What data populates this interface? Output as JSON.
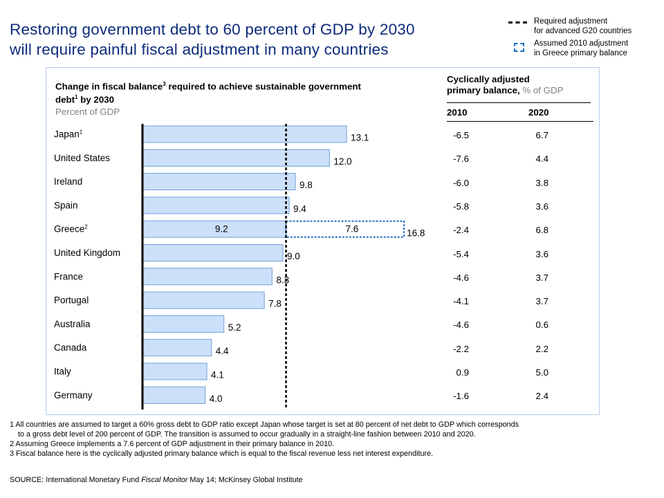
{
  "title": {
    "line1": "Restoring government debt to 60 percent of GDP by 2030",
    "line2": "will require painful fiscal adjustment in many countries"
  },
  "legend": {
    "dashed_line_l1": "Required adjustment",
    "dashed_line_l2": "for advanced G20 countries",
    "dashed_box_l1": "Assumed 2010 adjustment",
    "dashed_box_l2": "in Greece primary balance"
  },
  "chart_header": {
    "line1_a": "Change in fiscal balance",
    "line1_sup": "3",
    "line1_b": " required to achieve sustainable government",
    "line2_a": "debt",
    "line2_sup": "1",
    "line2_b": " by 2030",
    "unit": "Percent of GDP"
  },
  "table_header": {
    "line1": "Cyclically adjusted",
    "line2_bold": "primary balance,",
    "line2_unit": " % of GDP",
    "col_2010": "2010",
    "col_2020": "2020"
  },
  "chart_data": {
    "type": "bar",
    "orientation": "horizontal",
    "categories": [
      "Japan",
      "United States",
      "Ireland",
      "Spain",
      "Greece",
      "United Kingdom",
      "France",
      "Portugal",
      "Australia",
      "Canada",
      "Italy",
      "Germany"
    ],
    "category_superscripts": [
      "1",
      "",
      "",
      "",
      "2",
      "",
      "",
      "",
      "",
      "",
      "",
      ""
    ],
    "values": [
      13.1,
      12.0,
      9.8,
      9.4,
      9.2,
      9.0,
      8.3,
      7.8,
      5.2,
      4.4,
      4.1,
      4.0
    ],
    "value_labels": [
      "13.1",
      "12.0",
      "9.8",
      "9.4",
      "9.2",
      "9.0",
      "8.3",
      "7.8",
      "5.2",
      "4.4",
      "4.1",
      "4.0"
    ],
    "greece_extra": {
      "value": 7.6,
      "label": "7.6",
      "total": 16.8,
      "total_label": "16.8"
    },
    "required_adjustment_line": 9.2,
    "xlim": [
      0,
      17.5
    ],
    "bar_color": "#cce0fa",
    "bar_border": "#6fa0d8",
    "extra_border": "#1f6fc4"
  },
  "table": {
    "rows": [
      {
        "y2010": "-6.5",
        "y2020": "6.7"
      },
      {
        "y2010": "-7.6",
        "y2020": "4.4"
      },
      {
        "y2010": "-6.0",
        "y2020": "3.8"
      },
      {
        "y2010": "-5.8",
        "y2020": "3.6"
      },
      {
        "y2010": "-2.4",
        "y2020": "6.8"
      },
      {
        "y2010": "-5.4",
        "y2020": "3.6"
      },
      {
        "y2010": "-4.6",
        "y2020": "3.7"
      },
      {
        "y2010": "-4.1",
        "y2020": "3.7"
      },
      {
        "y2010": "-4.6",
        "y2020": "0.6"
      },
      {
        "y2010": "-2.2",
        "y2020": "2.2"
      },
      {
        "y2010": "0.9",
        "y2020": "5.0"
      },
      {
        "y2010": "-1.6",
        "y2020": "2.4"
      }
    ]
  },
  "footnotes": {
    "n1a": "1 All countries are assumed to target a 60% gross debt to GDP ratio except Japan whose target is set at 80 percent of net debt to GDP which corresponds",
    "n1b": "to a gross debt level of 200 percent of GDP. The transition is assumed to occur gradually in a straight-line fashion between 2010 and 2020.",
    "n2": "2 Assuming Greece implements a 7.6 percent of GDP adjustment in their primary balance in 2010.",
    "n3": "3 Fiscal balance here is the cyclically adjusted primary balance which is equal to the fiscal revenue less net interest expenditure."
  },
  "source": {
    "prefix": "SOURCE: International Monetary Fund ",
    "italic": "Fiscal Monitor",
    "suffix": " May 14; McKinsey Global Institute"
  }
}
